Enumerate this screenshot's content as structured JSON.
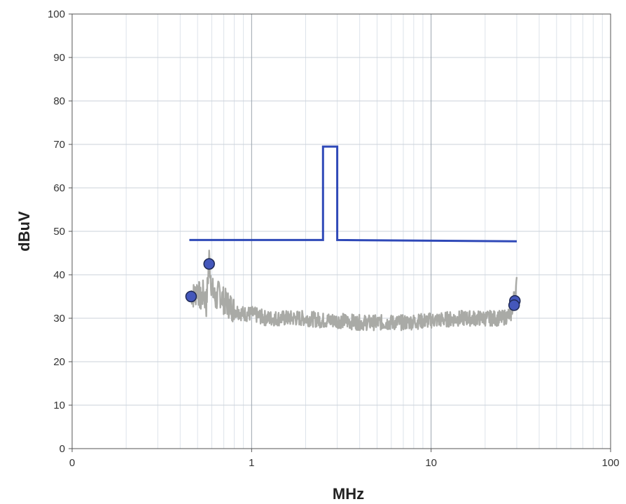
{
  "chart_data": {
    "type": "line",
    "title": "",
    "xlabel": "MHz",
    "ylabel": "dBuV",
    "x_scale": "log",
    "xlim": [
      0.1,
      100
    ],
    "ylim": [
      0,
      100
    ],
    "x_tick_labels": [
      "0",
      "1",
      "10",
      "100"
    ],
    "y_tick_labels": [
      "0",
      "10",
      "20",
      "30",
      "40",
      "50",
      "60",
      "70",
      "80",
      "90",
      "100"
    ],
    "grid": true,
    "legend": "none",
    "series": [
      {
        "kind": "limit-line",
        "color": "#2f49b8",
        "x": [
          0.45,
          2.5,
          2.5,
          3.0,
          3.0,
          30.0
        ],
        "y": [
          48,
          48,
          69.5,
          69.5,
          48,
          47.7
        ]
      },
      {
        "kind": "noise-trace",
        "color": "#a9aaa6",
        "x": [
          0.46,
          0.48,
          0.5,
          0.52,
          0.54,
          0.56,
          0.58,
          0.6,
          0.63,
          0.66,
          0.7,
          0.75,
          0.8,
          0.9,
          1.0,
          1.2,
          1.5,
          2.0,
          2.5,
          3.0,
          4.0,
          5.0,
          7.0,
          10.0,
          15.0,
          20.0,
          25.0,
          28.0,
          29.0,
          30.0
        ],
        "y": [
          36,
          35,
          37,
          34,
          36,
          33,
          44,
          37,
          34,
          36,
          34,
          33,
          32,
          31,
          31,
          30,
          30,
          30,
          29.5,
          29.5,
          29,
          29,
          29,
          29.5,
          30,
          30,
          30,
          31,
          35,
          38
        ]
      },
      {
        "kind": "markers",
        "color": "#4457bb",
        "x": [
          0.46,
          0.58,
          29.3,
          29.0
        ],
        "y": [
          35,
          42.5,
          34,
          33
        ]
      }
    ]
  }
}
